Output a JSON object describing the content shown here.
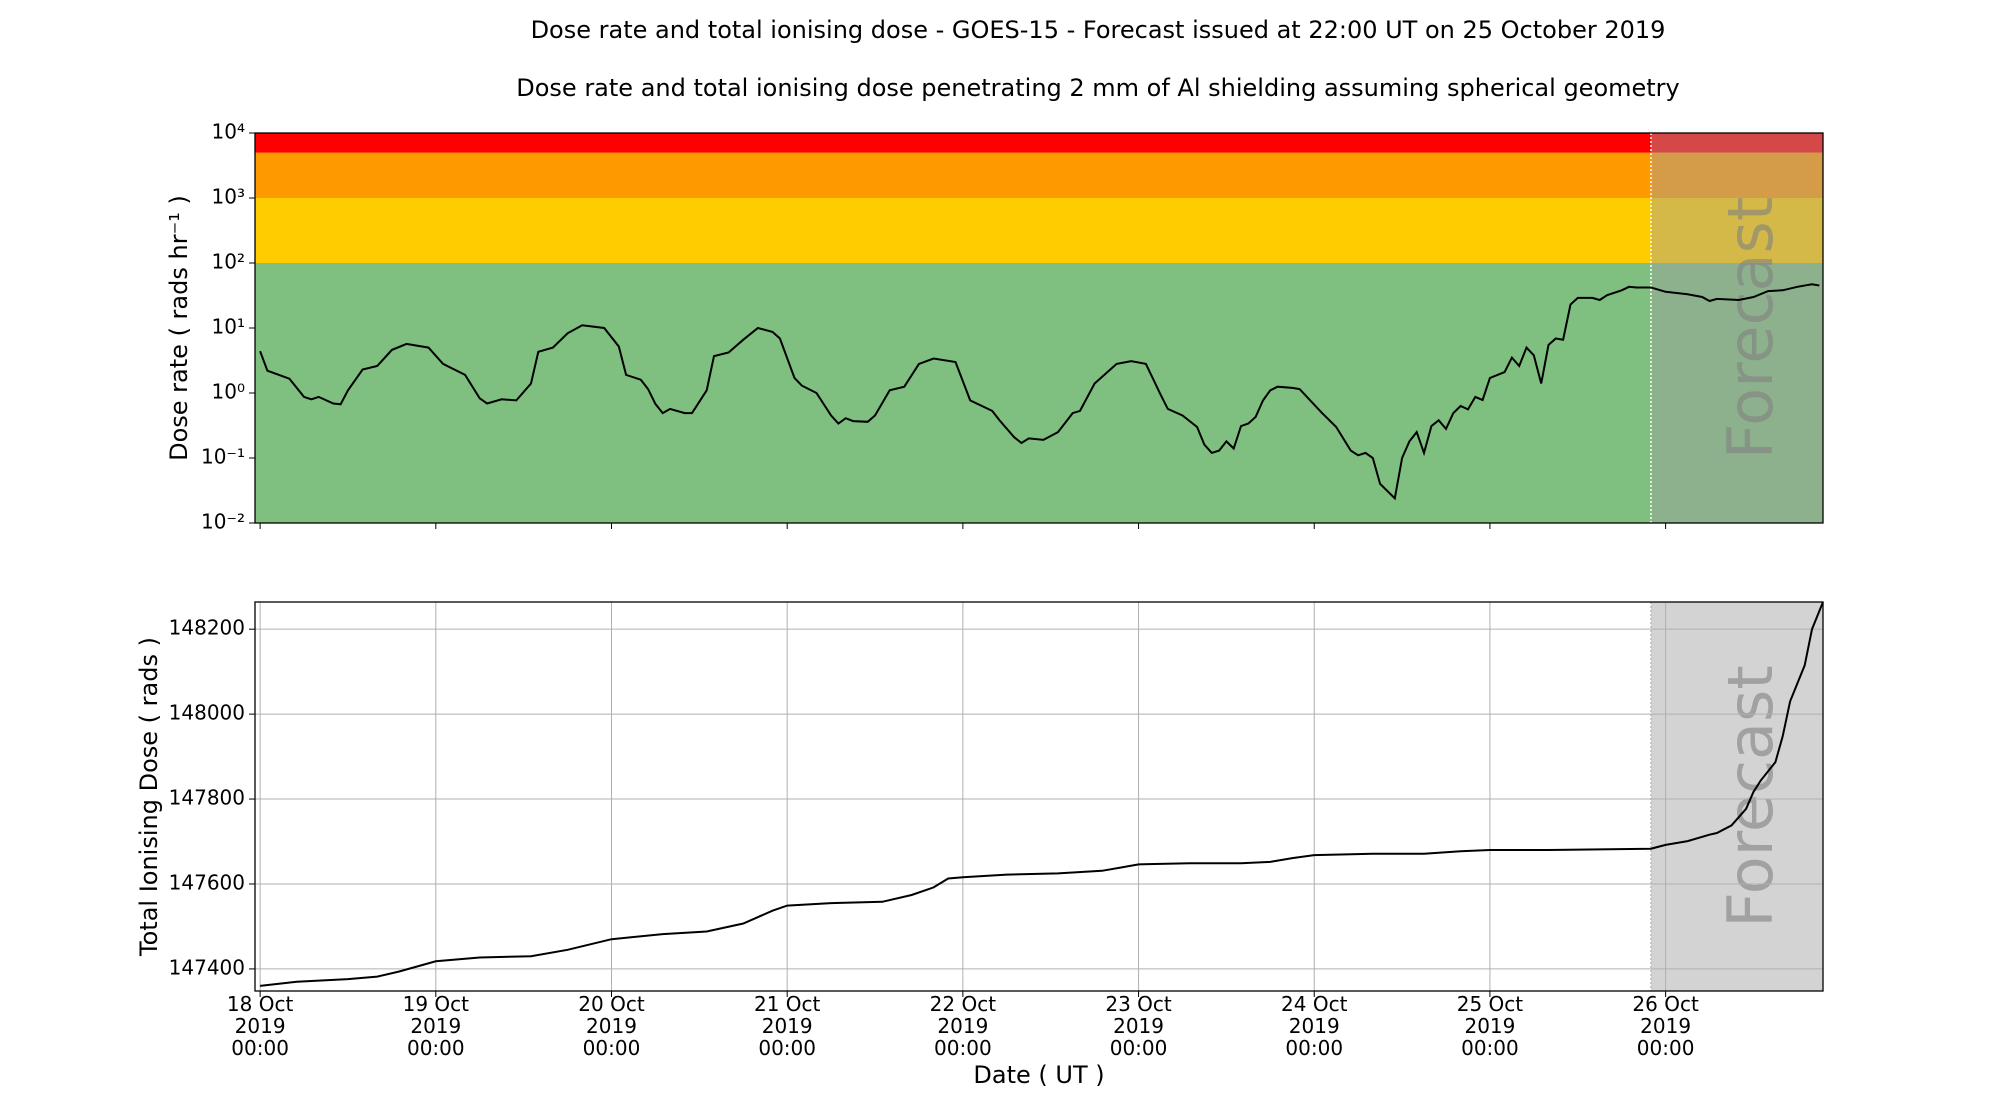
{
  "chart_data": [
    {
      "type": "line",
      "log_y": true,
      "title": "Dose rate and total ionising dose - GOES-15 - Forecast issued at 22:00 UT on 25 October 2019",
      "subtitle": "Dose rate and total ionising dose penetrating 2 mm of Al shielding assuming spherical geometry",
      "ylabel": "Dose rate ( rads hr⁻¹ )",
      "annotation": "Forecast",
      "forecast_start": "2019-10-25T22:00",
      "color": "#000000",
      "grid": false,
      "bands": [
        {
          "from": 0.01,
          "to": 100,
          "color": "#7fbf7f"
        },
        {
          "from": 100,
          "to": 1000,
          "color": "#ffcc00"
        },
        {
          "from": 1000,
          "to": 5000,
          "color": "#ff9900"
        },
        {
          "from": 5000,
          "to": 10000,
          "color": "#ff0000"
        }
      ],
      "xlim": [
        "2019-10-17T23:18",
        "2019-10-26T21:30"
      ],
      "xticks": [
        "2019-10-18T00:00",
        "2019-10-19T00:00",
        "2019-10-20T00:00",
        "2019-10-21T00:00",
        "2019-10-22T00:00",
        "2019-10-23T00:00",
        "2019-10-24T00:00",
        "2019-10-25T00:00",
        "2019-10-26T00:00"
      ],
      "ylim": [
        0.01,
        10000
      ],
      "yticks": [
        {
          "value": 0.01,
          "label": "10⁻²"
        },
        {
          "value": 0.1,
          "label": "10⁻¹"
        },
        {
          "value": 1,
          "label": "10⁰"
        },
        {
          "value": 10,
          "label": "10¹"
        },
        {
          "value": 100,
          "label": "10²"
        },
        {
          "value": 1000,
          "label": "10³"
        },
        {
          "value": 10000,
          "label": "10⁴"
        }
      ],
      "x": [
        "2019-10-18T00:00",
        "2019-10-18T01:00",
        "2019-10-18T04:00",
        "2019-10-18T06:00",
        "2019-10-18T07:00",
        "2019-10-18T08:00",
        "2019-10-18T10:00",
        "2019-10-18T11:00",
        "2019-10-18T12:00",
        "2019-10-18T14:00",
        "2019-10-18T16:00",
        "2019-10-18T18:00",
        "2019-10-18T20:00",
        "2019-10-18T23:00",
        "2019-10-19T01:00",
        "2019-10-19T04:00",
        "2019-10-19T06:00",
        "2019-10-19T07:00",
        "2019-10-19T09:00",
        "2019-10-19T11:00",
        "2019-10-19T13:00",
        "2019-10-19T14:00",
        "2019-10-19T16:00",
        "2019-10-19T18:00",
        "2019-10-19T20:00",
        "2019-10-19T23:00",
        "2019-10-20T01:00",
        "2019-10-20T02:00",
        "2019-10-20T04:00",
        "2019-10-20T05:00",
        "2019-10-20T06:00",
        "2019-10-20T07:00",
        "2019-10-20T08:00",
        "2019-10-20T10:00",
        "2019-10-20T11:00",
        "2019-10-20T13:00",
        "2019-10-20T14:00",
        "2019-10-20T16:00",
        "2019-10-20T18:00",
        "2019-10-20T20:00",
        "2019-10-20T22:00",
        "2019-10-20T23:00",
        "2019-10-21T01:00",
        "2019-10-21T02:00",
        "2019-10-21T04:00",
        "2019-10-21T06:00",
        "2019-10-21T07:00",
        "2019-10-21T08:00",
        "2019-10-21T09:00",
        "2019-10-21T11:00",
        "2019-10-21T12:00",
        "2019-10-21T14:00",
        "2019-10-21T16:00",
        "2019-10-21T18:00",
        "2019-10-21T20:00",
        "2019-10-21T23:00",
        "2019-10-22T01:00",
        "2019-10-22T04:00",
        "2019-10-22T05:00",
        "2019-10-22T07:00",
        "2019-10-22T08:00",
        "2019-10-22T09:00",
        "2019-10-22T11:00",
        "2019-10-22T13:00",
        "2019-10-22T15:00",
        "2019-10-22T16:00",
        "2019-10-22T18:00",
        "2019-10-22T21:00",
        "2019-10-22T23:00",
        "2019-10-23T01:00",
        "2019-10-23T03:00",
        "2019-10-23T04:00",
        "2019-10-23T06:00",
        "2019-10-23T08:00",
        "2019-10-23T09:00",
        "2019-10-23T10:00",
        "2019-10-23T11:00",
        "2019-10-23T12:00",
        "2019-10-23T13:00",
        "2019-10-23T14:00",
        "2019-10-23T15:00",
        "2019-10-23T16:00",
        "2019-10-23T17:00",
        "2019-10-23T18:00",
        "2019-10-23T19:00",
        "2019-10-23T21:00",
        "2019-10-23T22:00",
        "2019-10-24T01:00",
        "2019-10-24T03:00",
        "2019-10-24T05:00",
        "2019-10-24T06:00",
        "2019-10-24T07:00",
        "2019-10-24T08:00",
        "2019-10-24T09:00",
        "2019-10-24T11:00",
        "2019-10-24T12:00",
        "2019-10-24T13:00",
        "2019-10-24T14:00",
        "2019-10-24T15:00",
        "2019-10-24T16:00",
        "2019-10-24T17:00",
        "2019-10-24T18:00",
        "2019-10-24T19:00",
        "2019-10-24T20:00",
        "2019-10-24T21:00",
        "2019-10-24T22:00",
        "2019-10-24T23:00",
        "2019-10-25T00:00",
        "2019-10-25T02:00",
        "2019-10-25T03:00",
        "2019-10-25T04:00",
        "2019-10-25T05:00",
        "2019-10-25T06:00",
        "2019-10-25T07:00",
        "2019-10-25T08:00",
        "2019-10-25T09:00",
        "2019-10-25T10:00",
        "2019-10-25T11:00",
        "2019-10-25T12:00",
        "2019-10-25T14:00",
        "2019-10-25T15:00",
        "2019-10-25T16:00",
        "2019-10-25T18:00",
        "2019-10-25T19:00",
        "2019-10-25T20:00",
        "2019-10-25T22:00",
        "2019-10-26T00:00",
        "2019-10-26T03:00",
        "2019-10-26T05:00",
        "2019-10-26T06:00",
        "2019-10-26T07:00",
        "2019-10-26T10:00",
        "2019-10-26T12:00",
        "2019-10-26T14:00",
        "2019-10-26T16:00",
        "2019-10-26T18:00",
        "2019-10-26T20:00",
        "2019-10-26T21:00"
      ],
      "values": [
        4.4,
        2.2,
        1.66,
        0.87,
        0.8,
        0.87,
        0.69,
        0.67,
        1.1,
        2.3,
        2.6,
        4.6,
        5.7,
        5.0,
        2.8,
        1.9,
        0.83,
        0.69,
        0.8,
        0.77,
        1.4,
        4.3,
        5.0,
        8.3,
        11,
        10,
        5.2,
        1.9,
        1.6,
        1.15,
        0.68,
        0.49,
        0.57,
        0.49,
        0.49,
        1.1,
        3.7,
        4.2,
        6.6,
        10,
        8.7,
        6.9,
        1.7,
        1.3,
        1.0,
        0.45,
        0.34,
        0.41,
        0.37,
        0.36,
        0.45,
        1.1,
        1.25,
        2.8,
        3.4,
        3.0,
        0.77,
        0.53,
        0.38,
        0.21,
        0.17,
        0.2,
        0.19,
        0.25,
        0.49,
        0.53,
        1.4,
        2.8,
        3.1,
        2.8,
        0.95,
        0.57,
        0.45,
        0.3,
        0.16,
        0.12,
        0.13,
        0.18,
        0.14,
        0.31,
        0.34,
        0.43,
        0.77,
        1.1,
        1.25,
        1.2,
        1.15,
        0.5,
        0.3,
        0.13,
        0.11,
        0.12,
        0.1,
        0.04,
        0.024,
        0.1,
        0.18,
        0.25,
        0.12,
        0.31,
        0.38,
        0.28,
        0.49,
        0.63,
        0.56,
        0.87,
        0.78,
        1.7,
        2.1,
        3.5,
        2.6,
        5.0,
        3.8,
        1.4,
        5.5,
        6.9,
        6.6,
        23,
        29,
        29,
        27,
        32,
        38,
        43,
        42,
        42,
        36,
        33,
        30,
        26,
        28,
        27,
        30,
        37,
        38,
        43,
        47,
        45
      ]
    },
    {
      "type": "line",
      "log_y": false,
      "ylabel": "Total Ionising Dose ( rads )",
      "xlabel": "Date ( UT )",
      "annotation": "Forecast",
      "forecast_start": "2019-10-25T22:00",
      "color": "#000000",
      "grid": true,
      "xlim": [
        "2019-10-17T23:18",
        "2019-10-26T21:30"
      ],
      "xticks": [
        {
          "value": "2019-10-18T00:00",
          "label": "18 Oct\n2019\n00:00"
        },
        {
          "value": "2019-10-19T00:00",
          "label": "19 Oct\n2019\n00:00"
        },
        {
          "value": "2019-10-20T00:00",
          "label": "20 Oct\n2019\n00:00"
        },
        {
          "value": "2019-10-21T00:00",
          "label": "21 Oct\n2019\n00:00"
        },
        {
          "value": "2019-10-22T00:00",
          "label": "22 Oct\n2019\n00:00"
        },
        {
          "value": "2019-10-23T00:00",
          "label": "23 Oct\n2019\n00:00"
        },
        {
          "value": "2019-10-24T00:00",
          "label": "24 Oct\n2019\n00:00"
        },
        {
          "value": "2019-10-25T00:00",
          "label": "25 Oct\n2019\n00:00"
        },
        {
          "value": "2019-10-26T00:00",
          "label": "26 Oct\n2019\n00:00"
        }
      ],
      "ylim": [
        147348,
        148264
      ],
      "yticks": [
        147400,
        147600,
        147800,
        148000,
        148200
      ],
      "x": [
        "2019-10-18T00:00",
        "2019-10-18T05:00",
        "2019-10-18T12:00",
        "2019-10-18T16:00",
        "2019-10-18T19:00",
        "2019-10-19T00:00",
        "2019-10-19T06:00",
        "2019-10-19T13:00",
        "2019-10-19T18:00",
        "2019-10-20T00:00",
        "2019-10-20T07:00",
        "2019-10-20T13:00",
        "2019-10-20T18:00",
        "2019-10-20T22:00",
        "2019-10-21T00:00",
        "2019-10-21T06:00",
        "2019-10-21T13:00",
        "2019-10-21T17:00",
        "2019-10-21T20:00",
        "2019-10-21T22:00",
        "2019-10-22T00:00",
        "2019-10-22T06:00",
        "2019-10-22T13:00",
        "2019-10-22T19:00",
        "2019-10-22T22:00",
        "2019-10-23T00:00",
        "2019-10-23T07:00",
        "2019-10-23T14:00",
        "2019-10-23T18:00",
        "2019-10-23T21:00",
        "2019-10-24T00:00",
        "2019-10-24T08:00",
        "2019-10-24T15:00",
        "2019-10-24T20:00",
        "2019-10-25T00:00",
        "2019-10-25T08:00",
        "2019-10-25T22:00",
        "2019-10-26T00:00",
        "2019-10-26T03:00",
        "2019-10-26T06:00",
        "2019-10-26T07:00",
        "2019-10-26T09:00",
        "2019-10-26T11:00",
        "2019-10-26T12:00",
        "2019-10-26T13:00",
        "2019-10-26T15:00",
        "2019-10-26T16:00",
        "2019-10-26T17:00",
        "2019-10-26T19:00",
        "2019-10-26T20:00",
        "2019-10-26T21:30"
      ],
      "values": [
        147360,
        147370,
        147376,
        147382,
        147394,
        147418,
        147427,
        147430,
        147445,
        147470,
        147482,
        147488,
        147507,
        147537,
        147549,
        147555,
        147558,
        147574,
        147592,
        147613,
        147616,
        147622,
        147625,
        147631,
        147640,
        147646,
        147649,
        147649,
        147652,
        147661,
        147668,
        147671,
        147671,
        147677,
        147680,
        147680,
        147683,
        147692,
        147701,
        147716,
        147720,
        147738,
        147777,
        147817,
        147844,
        147887,
        147948,
        148030,
        148115,
        148200,
        148264
      ]
    }
  ]
}
